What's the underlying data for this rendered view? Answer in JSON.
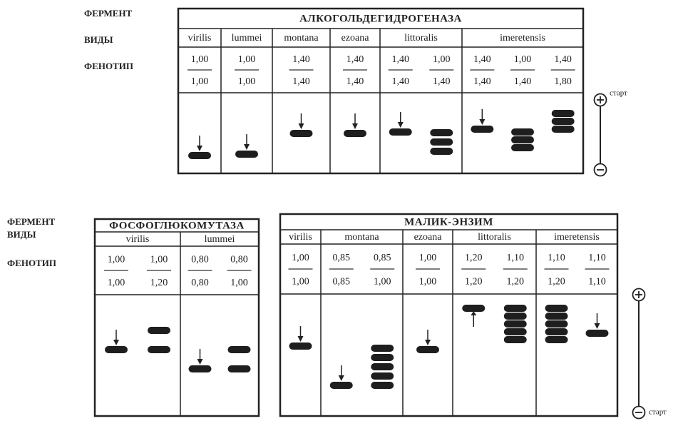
{
  "panels": [
    {
      "row_labels": {
        "enzyme": "ФЕРМЕНТ",
        "species": "ВИДЫ",
        "phenotype": "ФЕНОТИП"
      },
      "enzyme": "АЛКОГОЛЬДЕГИДРОГЕНАЗА",
      "species": [
        {
          "name": "virilis",
          "phenotypes": [
            {
              "top": "1,00",
              "bottom": "1,00"
            }
          ]
        },
        {
          "name": "lummei",
          "phenotypes": [
            {
              "top": "1,00",
              "bottom": "1,00"
            }
          ]
        },
        {
          "name": "montana",
          "phenotypes": [
            {
              "top": "1,40",
              "bottom": "1,40"
            }
          ]
        },
        {
          "name": "ezoana",
          "phenotypes": [
            {
              "top": "1,40",
              "bottom": "1,40"
            }
          ]
        },
        {
          "name": "littoralis",
          "phenotypes": [
            {
              "top": "1,40",
              "bottom": "1,40"
            },
            {
              "top": "1,00",
              "bottom": "1,40"
            }
          ]
        },
        {
          "name": "imeretensis",
          "phenotypes": [
            {
              "top": "1,40",
              "bottom": "1,40"
            },
            {
              "top": "1,00",
              "bottom": "1,40"
            },
            {
              "top": "1,40",
              "bottom": "1,80"
            }
          ]
        }
      ]
    },
    {
      "row_labels": {
        "enzyme": "ФЕРМЕНТ",
        "species": "ВИДЫ",
        "phenotype": "ФЕНОТИП"
      },
      "enzyme": "ФОСФОГЛЮКОМУТАЗА",
      "species": [
        {
          "name": "virilis",
          "phenotypes": [
            {
              "top": "1,00",
              "bottom": "1,00"
            },
            {
              "top": "1,00",
              "bottom": "1,20"
            }
          ]
        },
        {
          "name": "lummei",
          "phenotypes": [
            {
              "top": "0,80",
              "bottom": "0,80"
            },
            {
              "top": "0,80",
              "bottom": "1,00"
            }
          ]
        }
      ]
    },
    {
      "enzyme": "МАЛИК-ЭНЗИМ",
      "species": [
        {
          "name": "virilis",
          "phenotypes": [
            {
              "top": "1,00",
              "bottom": "1,00"
            }
          ]
        },
        {
          "name": "montana",
          "phenotypes": [
            {
              "top": "0,85",
              "bottom": "0,85"
            },
            {
              "top": "0,85",
              "bottom": "1,00"
            }
          ]
        },
        {
          "name": "ezoana",
          "phenotypes": [
            {
              "top": "1,00",
              "bottom": "1,00"
            }
          ]
        },
        {
          "name": "littoralis",
          "phenotypes": [
            {
              "top": "1,20",
              "bottom": "1,20"
            },
            {
              "top": "1,10",
              "bottom": "1,20"
            }
          ]
        },
        {
          "name": "imeretensis",
          "phenotypes": [
            {
              "top": "1,10",
              "bottom": "1,20"
            },
            {
              "top": "1,10",
              "bottom": "1,10"
            }
          ]
        }
      ]
    }
  ],
  "scale_labels": [
    "старт",
    "старт"
  ]
}
